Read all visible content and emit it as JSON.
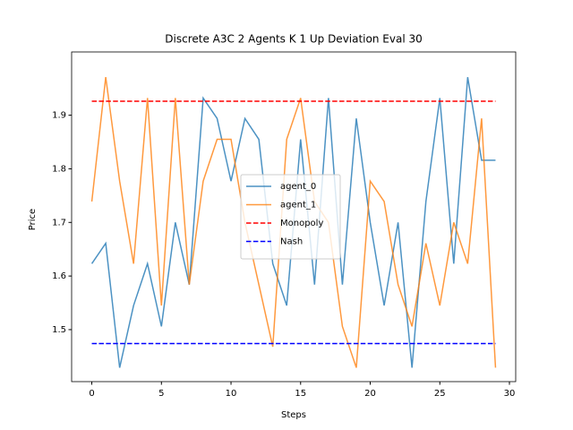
{
  "chart_data": {
    "type": "line",
    "title": "Discrete A3C 2 Agents K 1 Up Deviation Eval 30",
    "x_label": "Steps",
    "y_label": "Price",
    "x": [
      0,
      1,
      2,
      3,
      4,
      5,
      6,
      7,
      8,
      9,
      10,
      11,
      12,
      13,
      14,
      15,
      16,
      17,
      18,
      19,
      20,
      21,
      22,
      23,
      24,
      25,
      26,
      27,
      28,
      29
    ],
    "series": [
      {
        "name": "agent_0",
        "color": "#1f77b4",
        "values": [
          1.623,
          1.661,
          1.429,
          1.545,
          1.623,
          1.506,
          1.7,
          1.584,
          1.932,
          1.894,
          1.777,
          1.894,
          1.855,
          1.623,
          1.545,
          1.855,
          1.584,
          1.932,
          1.584,
          1.894,
          1.7,
          1.545,
          1.7,
          1.429,
          1.739,
          1.932,
          1.623,
          1.971,
          1.816,
          1.816
        ]
      },
      {
        "name": "agent_1",
        "color": "#ff7f0e",
        "values": [
          1.739,
          1.971,
          1.777,
          1.623,
          1.932,
          1.545,
          1.932,
          1.584,
          1.777,
          1.855,
          1.855,
          1.7,
          1.584,
          1.468,
          1.855,
          1.932,
          1.739,
          1.7,
          1.506,
          1.429,
          1.777,
          1.739,
          1.584,
          1.506,
          1.661,
          1.545,
          1.7,
          1.623,
          1.894,
          1.429
        ]
      }
    ],
    "hlines": [
      {
        "name": "Monopoly",
        "value": 1.926,
        "color": "#ff0000"
      },
      {
        "name": "Nash",
        "value": 1.474,
        "color": "#0000ff"
      }
    ],
    "xlim": [
      -1.45,
      30.45
    ],
    "xticks": [
      0,
      5,
      10,
      15,
      20,
      25,
      30
    ],
    "ylim": [
      1.403,
      2.018
    ],
    "yticks": [
      1.5,
      1.6,
      1.7,
      1.8,
      1.9
    ],
    "legend": "center"
  }
}
